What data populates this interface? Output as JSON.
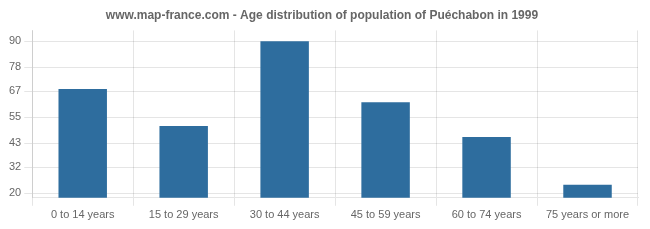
{
  "chart_data": {
    "type": "bar",
    "title": "www.map-france.com - Age distribution of population of Puéchabon in 1999",
    "categories": [
      "0 to 14 years",
      "15 to 29 years",
      "30 to 44 years",
      "45 to 59 years",
      "60 to 74 years",
      "75 years or more"
    ],
    "values": [
      68,
      51,
      90,
      62,
      46,
      24
    ],
    "color": "#2e6d9e",
    "ylim": [
      18,
      95
    ],
    "yticks": [
      20,
      32,
      43,
      55,
      67,
      78,
      90
    ],
    "grid": true
  }
}
